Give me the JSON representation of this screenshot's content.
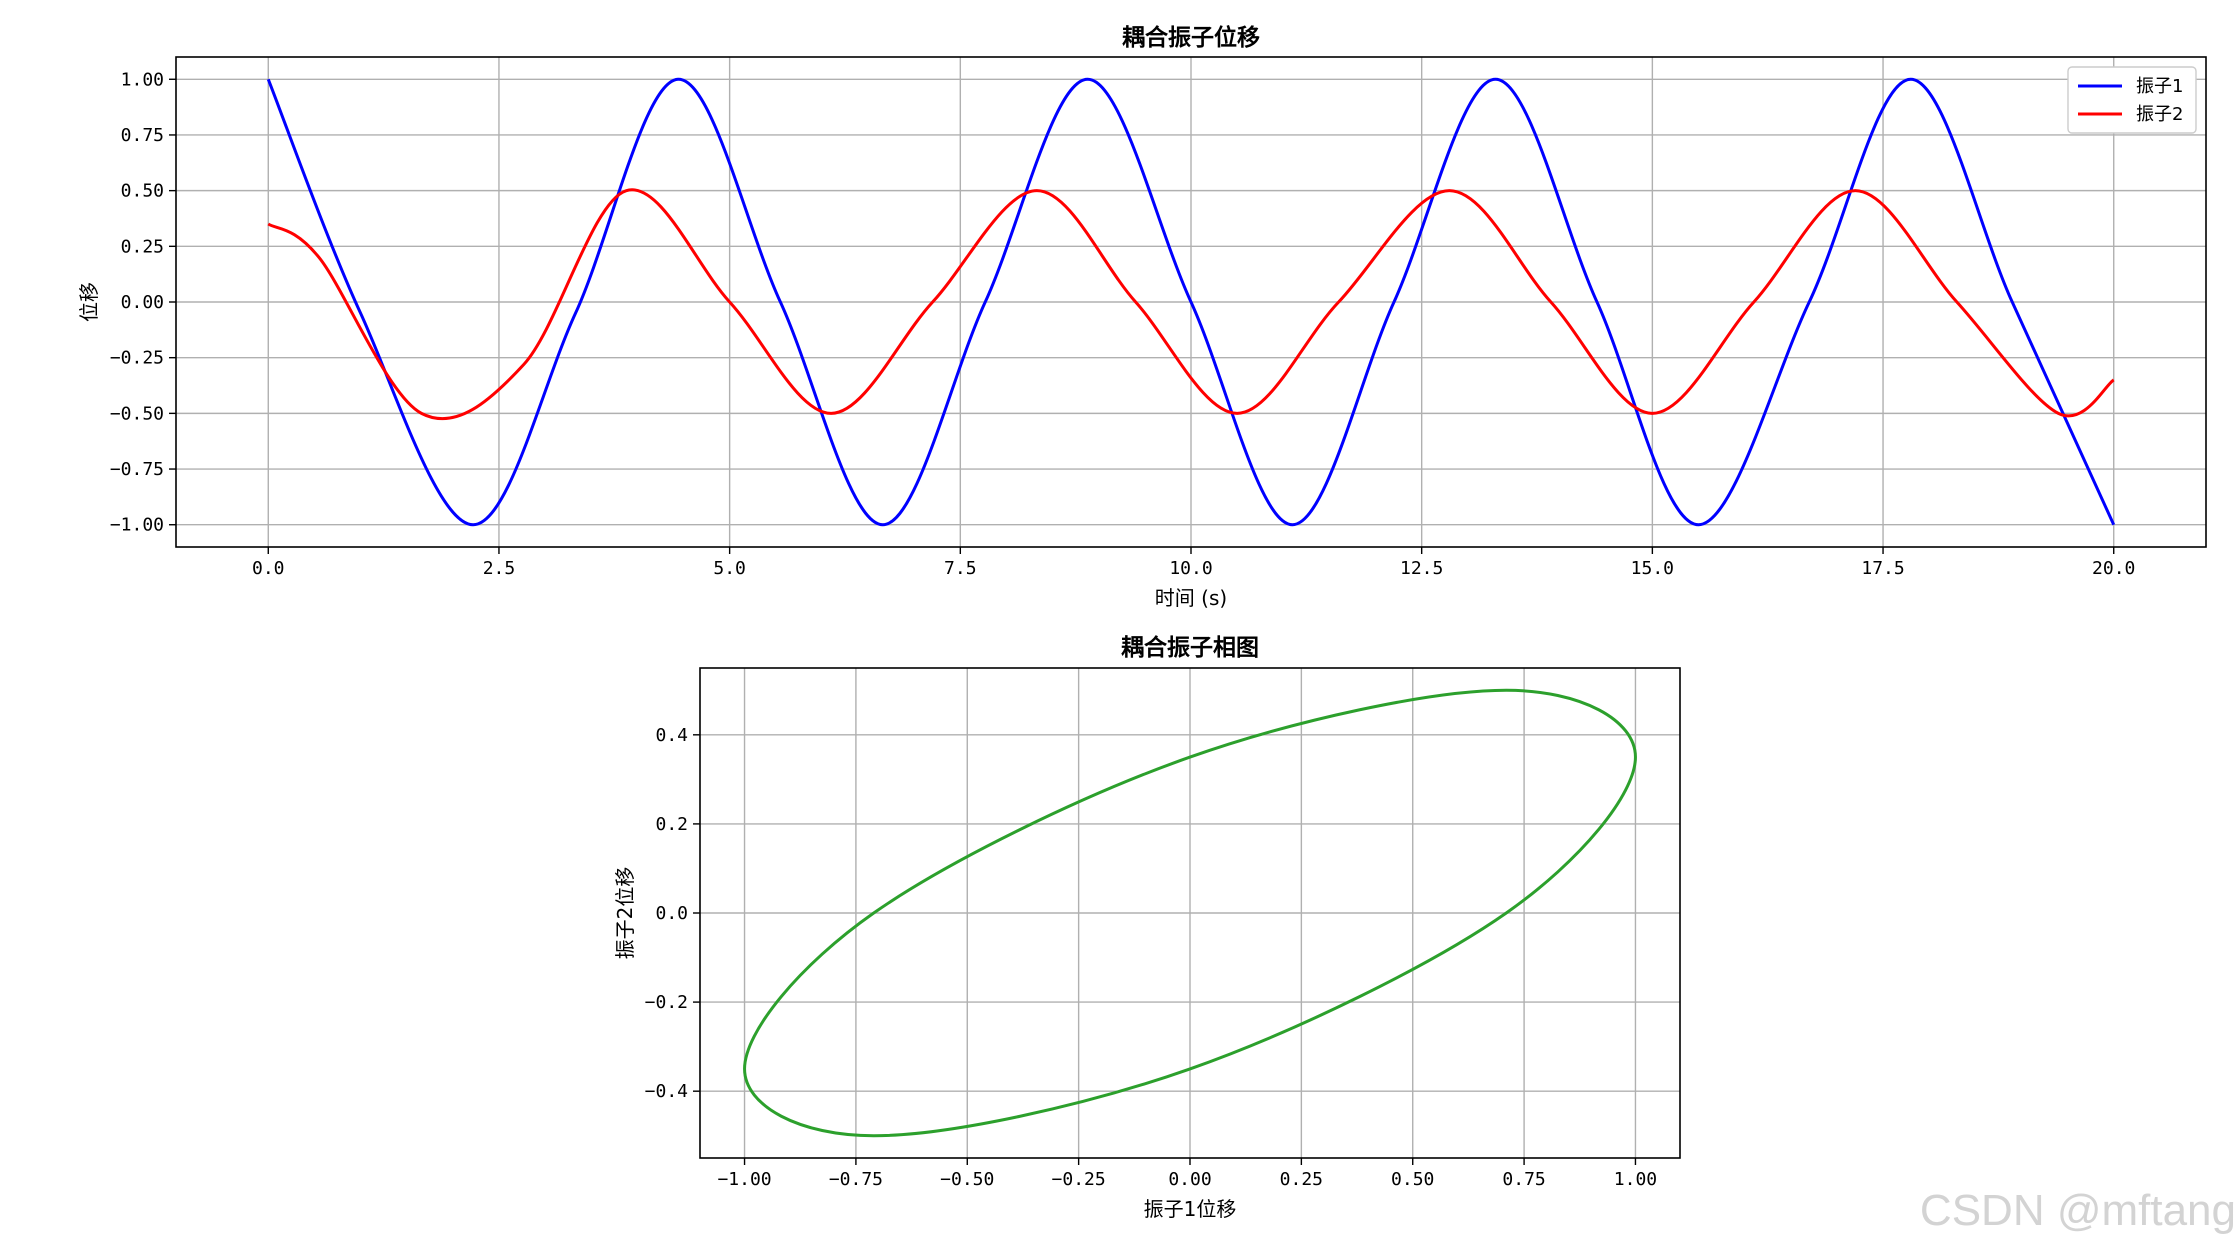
{
  "chart_data": [
    {
      "type": "line",
      "title": "耦合振子位移",
      "xlabel": "时间 (s)",
      "ylabel": "位移",
      "xlim": [
        -1,
        21
      ],
      "ylim": [
        -1.1,
        1.1
      ],
      "x_ticks": [
        0.0,
        2.5,
        5.0,
        7.5,
        10.0,
        12.5,
        15.0,
        17.5,
        20.0
      ],
      "x_tick_labels": [
        "0.0",
        "2.5",
        "5.0",
        "7.5",
        "10.0",
        "12.5",
        "15.0",
        "17.5",
        "20.0"
      ],
      "y_ticks": [
        1.0,
        0.75,
        0.5,
        0.25,
        0.0,
        -0.25,
        -0.5,
        -0.75,
        -1.0
      ],
      "y_tick_labels": [
        "1.00",
        "0.75",
        "0.50",
        "0.25",
        "0.00",
        "−0.25",
        "−0.50",
        "−0.75",
        "−1.00"
      ],
      "grid": true,
      "legend": "top-right",
      "series": [
        {
          "name": "振子1",
          "color": "#0000ff",
          "x": [
            0,
            1,
            2.22,
            3.33,
            4.44,
            5.55,
            6.66,
            7.77,
            8.88,
            10.0,
            11.1,
            12.2,
            13.3,
            14.4,
            15.5,
            16.7,
            17.8,
            18.9,
            20.0
          ],
          "y": [
            1.0,
            -0.05,
            -1.0,
            -0.05,
            1.0,
            0.0,
            -1.0,
            0.0,
            1.0,
            0.0,
            -1.0,
            0.0,
            1.0,
            0.0,
            -1.0,
            0.0,
            1.0,
            0.0,
            -1.0
          ]
        },
        {
          "name": "振子2",
          "color": "#ff0000",
          "x": [
            0,
            0.55,
            1.66,
            2.77,
            3.88,
            5.0,
            6.1,
            7.2,
            8.33,
            9.4,
            10.5,
            11.6,
            12.8,
            13.9,
            15.0,
            16.1,
            17.2,
            18.3,
            19.4,
            20.0
          ],
          "y": [
            0.35,
            0.2,
            -0.5,
            -0.28,
            0.5,
            0.0,
            -0.5,
            0.0,
            0.5,
            0.0,
            -0.5,
            0.0,
            0.5,
            0.0,
            -0.5,
            0.0,
            0.5,
            0.0,
            -0.5,
            -0.35
          ]
        }
      ]
    },
    {
      "type": "line",
      "title": "耦合振子相图",
      "xlabel": "振子1位移",
      "ylabel": "振子2位移",
      "xlim": [
        -1.1,
        1.1
      ],
      "ylim": [
        -0.55,
        0.55
      ],
      "x_ticks": [
        -1.0,
        -0.75,
        -0.5,
        -0.25,
        0.0,
        0.25,
        0.5,
        0.75,
        1.0
      ],
      "x_tick_labels": [
        "−1.00",
        "−0.75",
        "−0.50",
        "−0.25",
        "0.00",
        "0.25",
        "0.50",
        "0.75",
        "1.00"
      ],
      "y_ticks": [
        0.4,
        0.2,
        0.0,
        -0.2,
        -0.4
      ],
      "y_tick_labels": [
        "0.4",
        "0.2",
        "0.0",
        "−0.2",
        "−0.4"
      ],
      "grid": true,
      "series": [
        {
          "color": "#2ca02c",
          "curve": "ellipse",
          "x": [
            1.0,
            0.71,
            0.0,
            -0.71,
            -1.0,
            -0.71,
            0.0,
            0.71,
            1.0
          ],
          "y": [
            0.35,
            0.5,
            0.35,
            0.0,
            -0.35,
            -0.5,
            -0.35,
            0.0,
            0.35
          ]
        }
      ]
    }
  ],
  "watermark": "CSDN @mftang"
}
